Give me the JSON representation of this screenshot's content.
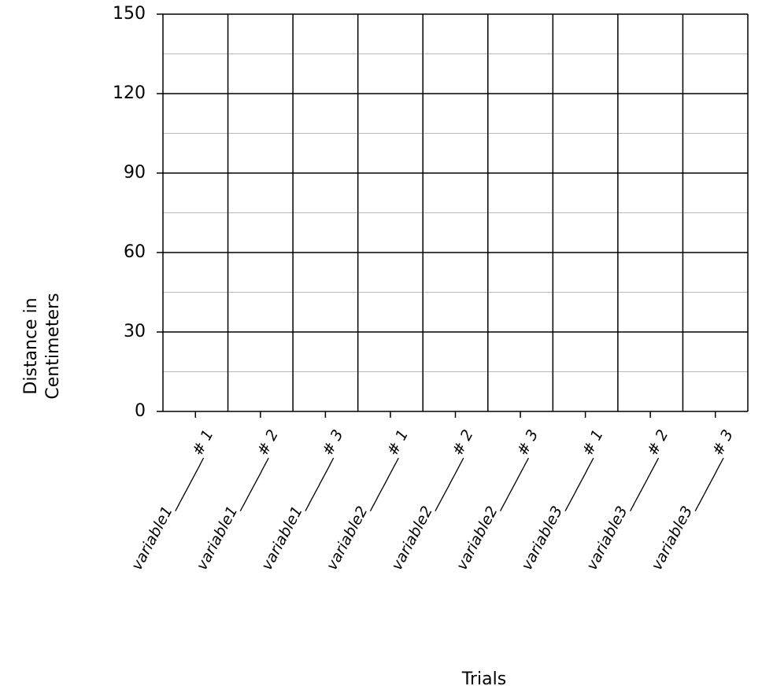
{
  "chart_data": {
    "type": "bar",
    "categories": [
      "variable1________# 1",
      "variable1________# 2",
      "variable1________# 3",
      "variable2________# 1",
      "variable2________# 2",
      "variable2________# 3",
      "variable3________# 1",
      "variable3________# 2",
      "variable3________# 3"
    ],
    "ylabel": [
      "Distance in",
      "Centimeters"
    ],
    "xlabel": "Trials",
    "ylim": [
      0,
      150
    ],
    "yticks": [
      0,
      30,
      60,
      90,
      120,
      150
    ],
    "minor_yticks": [
      15,
      45,
      75,
      105,
      135
    ],
    "grid": true
  }
}
